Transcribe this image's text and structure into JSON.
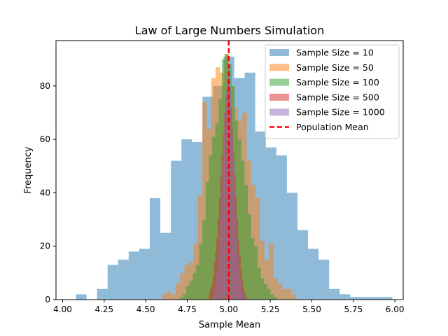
{
  "chart_data": {
    "type": "bar",
    "title": "Law of Large Numbers Simulation",
    "xlabel": "Sample Mean",
    "ylabel": "Frequency",
    "xlim": [
      3.96,
      6.05
    ],
    "ylim": [
      0,
      97
    ],
    "x_ticks": [
      4.0,
      4.25,
      4.5,
      4.75,
      5.0,
      5.25,
      5.5,
      5.75,
      6.0
    ],
    "x_tick_labels": [
      "4.00",
      "4.25",
      "4.50",
      "4.75",
      "5.00",
      "5.25",
      "5.50",
      "5.75",
      "6.00"
    ],
    "y_ticks": [
      0,
      20,
      40,
      60,
      80
    ],
    "y_tick_labels": [
      "0",
      "20",
      "40",
      "60",
      "80"
    ],
    "grid": false,
    "legend_position": "top-right",
    "series": [
      {
        "name": "Sample Size = 10",
        "color": "#1f77b4",
        "alpha": 0.5,
        "bin_start": 4.08,
        "bin_width": 0.0635,
        "values": [
          2,
          0,
          4,
          13,
          15,
          18,
          19,
          38,
          25,
          52,
          60,
          59,
          76,
          80,
          91,
          83,
          85,
          63,
          57,
          54,
          40,
          26,
          19,
          15,
          4,
          2,
          1,
          1,
          1,
          1
        ]
      },
      {
        "name": "Sample Size = 50",
        "color": "#ff7f0e",
        "alpha": 0.5,
        "bin_start": 4.6,
        "bin_width": 0.02675,
        "values": [
          2,
          3,
          2,
          6,
          10,
          13,
          14,
          21,
          39,
          74,
          64,
          83,
          87,
          85,
          92,
          80,
          72,
          67,
          70,
          52,
          43,
          38,
          22,
          15,
          21,
          8,
          6,
          4,
          4,
          2
        ]
      },
      {
        "name": "Sample Size = 100",
        "color": "#2ca02c",
        "alpha": 0.5,
        "bin_start": 4.705,
        "bin_width": 0.0195,
        "values": [
          1,
          2,
          5,
          7,
          10,
          13,
          21,
          30,
          44,
          54,
          61,
          66,
          75,
          90,
          92,
          88,
          80,
          67,
          60,
          52,
          43,
          32,
          23,
          20,
          12,
          8,
          6,
          4,
          2,
          1
        ]
      },
      {
        "name": "Sample Size = 500",
        "color": "#d62728",
        "alpha": 0.5,
        "bin_start": 4.88,
        "bin_width": 0.00767,
        "values": [
          2,
          4,
          6,
          9,
          14,
          18,
          23,
          30,
          38,
          46,
          54,
          62,
          70,
          76,
          80,
          82,
          78,
          72,
          64,
          55,
          47,
          38,
          30,
          22,
          16,
          11,
          7,
          4,
          2,
          1
        ]
      },
      {
        "name": "Sample Size = 1000",
        "color": "#9467bd",
        "alpha": 0.5,
        "bin_start": 4.9,
        "bin_width": 0.00667,
        "values": [
          1,
          3,
          5,
          8,
          12,
          17,
          24,
          32,
          41,
          52,
          62,
          70,
          78,
          84,
          88,
          85,
          80,
          72,
          62,
          52,
          41,
          32,
          24,
          17,
          12,
          8,
          5,
          3,
          2,
          1
        ]
      }
    ],
    "reference_line": {
      "name": "Population Mean",
      "x": 5.0,
      "color": "#ff0000",
      "style": "dashed"
    }
  }
}
